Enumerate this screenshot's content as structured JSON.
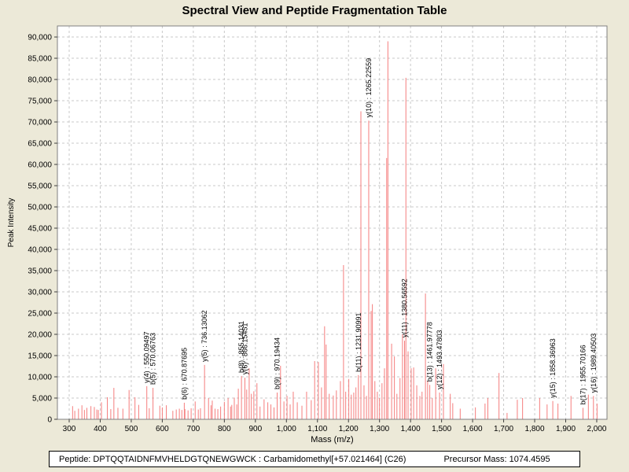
{
  "title": "Spectral View and Peptide Fragmentation Table",
  "footer": {
    "peptide_label": "Peptide: DPTQQTAIDNFMVHELDGTQNEWGWCK : Carbamidomethyl[+57.021464] (C26)",
    "precursor_label": "Precursor Mass: 1074.4595"
  },
  "chart_data": {
    "type": "bar",
    "title": "Spectral View and Peptide Fragmentation Table",
    "xlabel": "Mass (m/z)",
    "ylabel": "Peak Intensity",
    "xlim": [
      262,
      2033
    ],
    "ylim": [
      0,
      92600
    ],
    "x_ticks": [
      300,
      400,
      500,
      600,
      700,
      800,
      900,
      1000,
      1100,
      1200,
      1300,
      1400,
      1500,
      1600,
      1700,
      1800,
      1900,
      2000
    ],
    "y_ticks": [
      0,
      5000,
      10000,
      15000,
      20000,
      25000,
      30000,
      35000,
      40000,
      45000,
      50000,
      55000,
      60000,
      65000,
      70000,
      75000,
      80000,
      85000,
      90000
    ],
    "grid": true,
    "legend": "none",
    "peak_color": "#f57d7d",
    "grid_color": "#c9c9c9",
    "axis_color": "#808080",
    "labeled_peaks": [
      {
        "label": "y(4) : 550.09497",
        "mass": 550.09497,
        "intensity": 7800
      },
      {
        "label": "b(5) : 570.06763",
        "mass": 570.06763,
        "intensity": 7400
      },
      {
        "label": "b(6) : 670.87695",
        "mass": 670.87695,
        "intensity": 3900
      },
      {
        "label": "y(5) : 736.13062",
        "mass": 736.13062,
        "intensity": 12800
      },
      {
        "label": "b(8) : 855.14031",
        "mass": 855.14031,
        "intensity": 10200
      },
      {
        "label": "y(6) : 866.15451",
        "mass": 866.15451,
        "intensity": 9800
      },
      {
        "label": "b(9) : 970.19434",
        "mass": 970.19434,
        "intensity": 6300
      },
      {
        "label": "b(11) : 1231.90991",
        "mass": 1231.90991,
        "intensity": 10400
      },
      {
        "label": "y(10) : 1265.22559",
        "mass": 1265.22559,
        "intensity": 70300
      },
      {
        "label": "y(11) : 1380.56592",
        "mass": 1380.56592,
        "intensity": 18500
      },
      {
        "label": "b(13) : 1461.97778",
        "mass": 1461.97778,
        "intensity": 8100
      },
      {
        "label": "y(12) : 1493.47803",
        "mass": 1493.47803,
        "intensity": 6300
      },
      {
        "label": "y(15) : 1858.36963",
        "mass": 1858.36963,
        "intensity": 4300
      },
      {
        "label": "b(17) : 1955.70166",
        "mass": 1955.70166,
        "intensity": 2700
      },
      {
        "label": "y(16) : 1989.40503",
        "mass": 1989.40503,
        "intensity": 5500
      }
    ],
    "peaks": [
      [
        311,
        3100
      ],
      [
        318,
        2000
      ],
      [
        330,
        2500
      ],
      [
        341,
        3300
      ],
      [
        349,
        2200
      ],
      [
        357,
        2700
      ],
      [
        370,
        3100
      ],
      [
        381,
        2900
      ],
      [
        389,
        2300
      ],
      [
        394,
        2200
      ],
      [
        404,
        4000
      ],
      [
        423,
        5200
      ],
      [
        434,
        2400
      ],
      [
        444,
        7400
      ],
      [
        457,
        2700
      ],
      [
        473,
        2500
      ],
      [
        493,
        6900
      ],
      [
        512,
        5200
      ],
      [
        524,
        3400
      ],
      [
        558,
        2600
      ],
      [
        592,
        3200
      ],
      [
        600,
        2800
      ],
      [
        613,
        3300
      ],
      [
        634,
        2000
      ],
      [
        645,
        2300
      ],
      [
        655,
        2500
      ],
      [
        663,
        2200
      ],
      [
        673,
        2400
      ],
      [
        683,
        2100
      ],
      [
        693,
        2600
      ],
      [
        706,
        4200
      ],
      [
        716,
        2300
      ],
      [
        723,
        2600
      ],
      [
        749,
        5000
      ],
      [
        757,
        3300
      ],
      [
        761,
        4400
      ],
      [
        770,
        2500
      ],
      [
        779,
        2400
      ],
      [
        788,
        3000
      ],
      [
        800,
        4100
      ],
      [
        812,
        5000
      ],
      [
        820,
        3000
      ],
      [
        824,
        3400
      ],
      [
        832,
        5100
      ],
      [
        840,
        3500
      ],
      [
        845,
        7200
      ],
      [
        872,
        7000
      ],
      [
        880,
        12000
      ],
      [
        887,
        6000
      ],
      [
        895,
        6600
      ],
      [
        905,
        8500
      ],
      [
        915,
        3000
      ],
      [
        928,
        4700
      ],
      [
        940,
        4000
      ],
      [
        950,
        3500
      ],
      [
        960,
        2800
      ],
      [
        981,
        12600
      ],
      [
        992,
        4200
      ],
      [
        1002,
        5500
      ],
      [
        1012,
        3500
      ],
      [
        1022,
        6500
      ],
      [
        1035,
        4000
      ],
      [
        1050,
        3200
      ],
      [
        1065,
        6500
      ],
      [
        1080,
        4500
      ],
      [
        1091,
        13700
      ],
      [
        1103,
        13500
      ],
      [
        1113,
        7500
      ],
      [
        1123,
        21900
      ],
      [
        1128,
        17600
      ],
      [
        1138,
        6000
      ],
      [
        1151,
        5600
      ],
      [
        1161,
        6800
      ],
      [
        1174,
        9000
      ],
      [
        1184,
        36300
      ],
      [
        1191,
        6500
      ],
      [
        1201,
        9500
      ],
      [
        1209,
        5800
      ],
      [
        1217,
        6300
      ],
      [
        1224,
        7500
      ],
      [
        1240,
        72500
      ],
      [
        1250,
        8000
      ],
      [
        1258,
        5500
      ],
      [
        1273,
        25500
      ],
      [
        1277,
        27100
      ],
      [
        1285,
        9000
      ],
      [
        1293,
        6500
      ],
      [
        1300,
        5000
      ],
      [
        1308,
        8500
      ],
      [
        1316,
        12000
      ],
      [
        1323,
        61500
      ],
      [
        1327,
        89000
      ],
      [
        1339,
        17800
      ],
      [
        1348,
        14800
      ],
      [
        1356,
        6000
      ],
      [
        1366,
        9700
      ],
      [
        1374,
        20000
      ],
      [
        1385,
        80400
      ],
      [
        1392,
        16000
      ],
      [
        1402,
        12000
      ],
      [
        1410,
        12200
      ],
      [
        1420,
        8000
      ],
      [
        1430,
        5500
      ],
      [
        1437,
        6500
      ],
      [
        1448,
        29600
      ],
      [
        1455,
        9000
      ],
      [
        1470,
        5000
      ],
      [
        1481,
        12000
      ],
      [
        1506,
        13000
      ],
      [
        1528,
        6000
      ],
      [
        1536,
        3800
      ],
      [
        1560,
        2500
      ],
      [
        1609,
        2800
      ],
      [
        1640,
        3700
      ],
      [
        1649,
        5000
      ],
      [
        1685,
        10900
      ],
      [
        1711,
        1500
      ],
      [
        1744,
        4600
      ],
      [
        1761,
        5000
      ],
      [
        1816,
        5000
      ],
      [
        1840,
        3500
      ],
      [
        1875,
        3700
      ],
      [
        1917,
        5500
      ],
      [
        1973,
        5800
      ],
      [
        2001,
        3700
      ]
    ]
  }
}
